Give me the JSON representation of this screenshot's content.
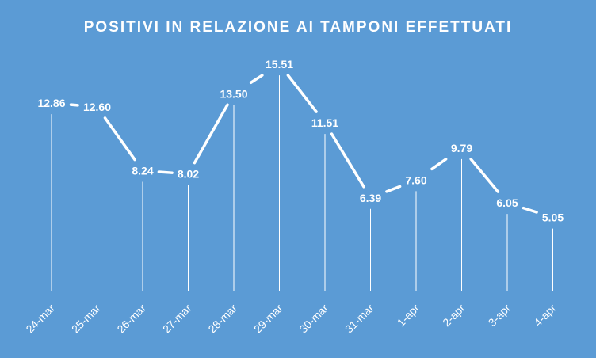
{
  "chart_data": {
    "type": "line",
    "title": "POSITIVI IN RELAZIONE AI TAMPONI EFFETTUATI",
    "categories": [
      "24-mar",
      "25-mar",
      "26-mar",
      "27-mar",
      "28-mar",
      "29-mar",
      "30-mar",
      "31-mar",
      "1-apr",
      "2-apr",
      "3-apr",
      "4-apr"
    ],
    "values": [
      12.86,
      12.6,
      8.24,
      8.02,
      13.5,
      15.51,
      11.51,
      6.39,
      7.6,
      9.79,
      6.05,
      5.05
    ],
    "value_labels": [
      "12.86",
      "12.60",
      "8.24",
      "8.02",
      "13.50",
      "15.51",
      "11.51",
      "6.39",
      "7.60",
      "9.79",
      "6.05",
      "5.05"
    ],
    "xlabel": "",
    "ylabel": "",
    "ylim": [
      0,
      18
    ],
    "grid": false,
    "drop_lines": true,
    "background_color": "#5b9bd5",
    "line_color": "#ffffff",
    "text_color": "#ffffff"
  }
}
